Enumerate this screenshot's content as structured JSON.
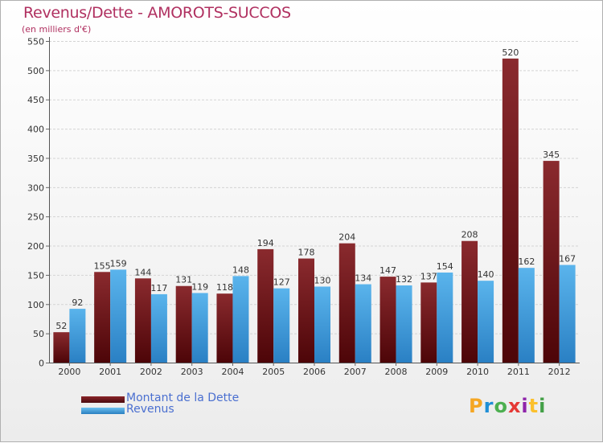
{
  "chart_data": {
    "type": "bar",
    "title": "Revenus/Dette - AMOROTS-SUCCOS",
    "subtitle": "(en milliers d'€)",
    "categories": [
      "2000",
      "2001",
      "2002",
      "2003",
      "2004",
      "2005",
      "2006",
      "2007",
      "2008",
      "2009",
      "2010",
      "2011",
      "2012"
    ],
    "series": [
      {
        "name": "Montant de la Dette",
        "color": "#7a1a1e",
        "values": [
          52,
          155,
          144,
          131,
          118,
          194,
          178,
          204,
          147,
          137,
          208,
          520,
          345
        ]
      },
      {
        "name": "Revenus",
        "color": "#4aa3e0",
        "values": [
          92,
          159,
          117,
          119,
          148,
          127,
          130,
          134,
          132,
          154,
          140,
          162,
          167
        ]
      }
    ],
    "ylim": [
      0,
      550
    ],
    "yticks": [
      0,
      50,
      100,
      150,
      200,
      250,
      300,
      350,
      400,
      450,
      500,
      550
    ],
    "grid": true,
    "legend_position": "bottom-left"
  },
  "legend": {
    "debt_label": "Montant de la Dette",
    "revenue_label": "Revenus"
  },
  "logo": {
    "letters": [
      "P",
      "r",
      "o",
      "x",
      "i",
      "t",
      "i"
    ],
    "colors": [
      "#f5a623",
      "#1f8fd6",
      "#4caf50",
      "#e53935",
      "#8e24aa",
      "#fbc02d",
      "#43a047"
    ]
  }
}
